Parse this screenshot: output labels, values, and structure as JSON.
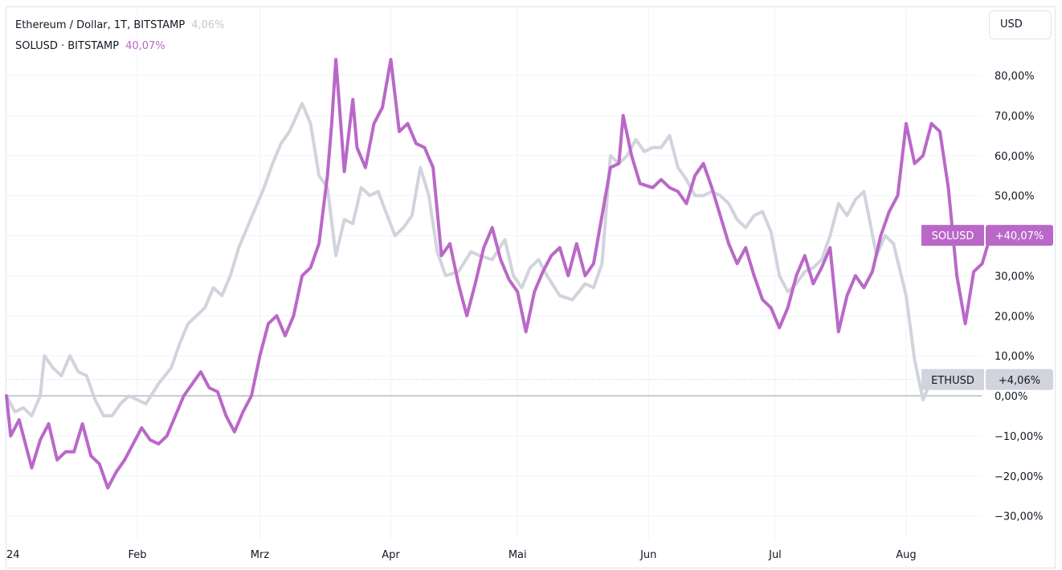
{
  "legend": {
    "eth_title": "Ethereum / Dollar, 1T, BITSTAMP",
    "eth_value": "4,06%",
    "sol_title": "SOLUSD · BITSTAMP",
    "sol_value": "40,07%"
  },
  "currency_button": "USD",
  "colors": {
    "eth": "#d1d4dc",
    "sol": "#ba68c8",
    "grid": "#f0f3fa",
    "zero": "#9598a1"
  },
  "chart_data": {
    "type": "line",
    "x_range": [
      "2024-01-01",
      "2024-08-12"
    ],
    "ylim": [
      -32,
      88
    ],
    "y_ticks": [
      80,
      70,
      60,
      50,
      40,
      30,
      20,
      10,
      0,
      -10,
      -20,
      -30
    ],
    "y_tick_labels": [
      "80,00%",
      "70,00%",
      "60,00%",
      "50,00%",
      "40,00%",
      "30,00%",
      "20,00%",
      "10,00%",
      "0,00%",
      "−10,00%",
      "−20,00%",
      "−30,00%"
    ],
    "x_ticks": [
      {
        "date": "2024-01-01",
        "label": "24"
      },
      {
        "date": "2024-02-01",
        "label": "Feb"
      },
      {
        "date": "2024-03-01",
        "label": "Mrz"
      },
      {
        "date": "2024-04-01",
        "label": "Apr"
      },
      {
        "date": "2024-05-01",
        "label": "Mai"
      },
      {
        "date": "2024-06-01",
        "label": "Jun"
      },
      {
        "date": "2024-07-01",
        "label": "Jul"
      },
      {
        "date": "2024-08-01",
        "label": "Aug"
      }
    ],
    "series": [
      {
        "name": "ETHUSD",
        "tag_value": "+4,06%",
        "points": [
          [
            "2024-01-01",
            0
          ],
          [
            "2024-01-03",
            -4
          ],
          [
            "2024-01-05",
            -3
          ],
          [
            "2024-01-07",
            -5
          ],
          [
            "2024-01-09",
            0
          ],
          [
            "2024-01-10",
            10
          ],
          [
            "2024-01-12",
            7
          ],
          [
            "2024-01-14",
            5
          ],
          [
            "2024-01-16",
            10
          ],
          [
            "2024-01-18",
            6
          ],
          [
            "2024-01-20",
            5
          ],
          [
            "2024-01-22",
            -1
          ],
          [
            "2024-01-24",
            -5
          ],
          [
            "2024-01-26",
            -5
          ],
          [
            "2024-01-28",
            -2
          ],
          [
            "2024-01-30",
            0
          ],
          [
            "2024-02-01",
            -1
          ],
          [
            "2024-02-03",
            -2
          ],
          [
            "2024-02-06",
            3
          ],
          [
            "2024-02-09",
            7
          ],
          [
            "2024-02-11",
            13
          ],
          [
            "2024-02-13",
            18
          ],
          [
            "2024-02-15",
            20
          ],
          [
            "2024-02-17",
            22
          ],
          [
            "2024-02-19",
            27
          ],
          [
            "2024-02-21",
            25
          ],
          [
            "2024-02-23",
            30
          ],
          [
            "2024-02-25",
            37
          ],
          [
            "2024-02-27",
            42
          ],
          [
            "2024-02-29",
            47
          ],
          [
            "2024-03-02",
            52
          ],
          [
            "2024-03-04",
            58
          ],
          [
            "2024-03-06",
            63
          ],
          [
            "2024-03-08",
            66
          ],
          [
            "2024-03-11",
            73
          ],
          [
            "2024-03-13",
            68
          ],
          [
            "2024-03-15",
            55
          ],
          [
            "2024-03-17",
            52
          ],
          [
            "2024-03-19",
            35
          ],
          [
            "2024-03-21",
            44
          ],
          [
            "2024-03-23",
            43
          ],
          [
            "2024-03-25",
            52
          ],
          [
            "2024-03-27",
            50
          ],
          [
            "2024-03-29",
            51
          ],
          [
            "2024-04-02",
            40
          ],
          [
            "2024-04-04",
            42
          ],
          [
            "2024-04-06",
            45
          ],
          [
            "2024-04-08",
            57
          ],
          [
            "2024-04-10",
            50
          ],
          [
            "2024-04-12",
            36
          ],
          [
            "2024-04-14",
            30
          ],
          [
            "2024-04-17",
            31
          ],
          [
            "2024-04-20",
            36
          ],
          [
            "2024-04-22",
            35
          ],
          [
            "2024-04-25",
            34
          ],
          [
            "2024-04-28",
            39
          ],
          [
            "2024-04-30",
            30
          ],
          [
            "2024-05-02",
            27
          ],
          [
            "2024-05-04",
            32
          ],
          [
            "2024-05-06",
            34
          ],
          [
            "2024-05-08",
            30
          ],
          [
            "2024-05-11",
            25
          ],
          [
            "2024-05-14",
            24
          ],
          [
            "2024-05-17",
            28
          ],
          [
            "2024-05-19",
            27
          ],
          [
            "2024-05-21",
            33
          ],
          [
            "2024-05-23",
            60
          ],
          [
            "2024-05-25",
            58
          ],
          [
            "2024-05-27",
            60
          ],
          [
            "2024-05-29",
            64
          ],
          [
            "2024-05-31",
            61
          ],
          [
            "2024-06-02",
            62
          ],
          [
            "2024-06-04",
            62
          ],
          [
            "2024-06-06",
            65
          ],
          [
            "2024-06-08",
            57
          ],
          [
            "2024-06-10",
            54
          ],
          [
            "2024-06-12",
            50
          ],
          [
            "2024-06-14",
            50
          ],
          [
            "2024-06-16",
            51
          ],
          [
            "2024-06-18",
            50
          ],
          [
            "2024-06-20",
            48
          ],
          [
            "2024-06-22",
            44
          ],
          [
            "2024-06-24",
            42
          ],
          [
            "2024-06-26",
            45
          ],
          [
            "2024-06-28",
            46
          ],
          [
            "2024-06-30",
            41
          ],
          [
            "2024-07-02",
            30
          ],
          [
            "2024-07-04",
            26
          ],
          [
            "2024-07-06",
            28
          ],
          [
            "2024-07-08",
            31
          ],
          [
            "2024-07-10",
            32
          ],
          [
            "2024-07-12",
            34
          ],
          [
            "2024-07-14",
            40
          ],
          [
            "2024-07-16",
            48
          ],
          [
            "2024-07-18",
            45
          ],
          [
            "2024-07-20",
            49
          ],
          [
            "2024-07-22",
            51
          ],
          [
            "2024-07-25",
            35
          ],
          [
            "2024-07-27",
            40
          ],
          [
            "2024-07-29",
            38
          ],
          [
            "2024-08-01",
            25
          ],
          [
            "2024-08-03",
            9
          ],
          [
            "2024-08-05",
            -1
          ],
          [
            "2024-08-07",
            4.06
          ]
        ]
      },
      {
        "name": "SOLUSD",
        "tag_value": "+40,07%",
        "points": [
          [
            "2024-01-01",
            0
          ],
          [
            "2024-01-02",
            -10
          ],
          [
            "2024-01-04",
            -6
          ],
          [
            "2024-01-07",
            -18
          ],
          [
            "2024-01-09",
            -11
          ],
          [
            "2024-01-11",
            -7
          ],
          [
            "2024-01-13",
            -16
          ],
          [
            "2024-01-15",
            -14
          ],
          [
            "2024-01-17",
            -14
          ],
          [
            "2024-01-19",
            -7
          ],
          [
            "2024-01-21",
            -15
          ],
          [
            "2024-01-23",
            -17
          ],
          [
            "2024-01-25",
            -23
          ],
          [
            "2024-01-27",
            -19
          ],
          [
            "2024-01-29",
            -16
          ],
          [
            "2024-01-31",
            -12
          ],
          [
            "2024-02-02",
            -8
          ],
          [
            "2024-02-04",
            -11
          ],
          [
            "2024-02-06",
            -12
          ],
          [
            "2024-02-08",
            -10
          ],
          [
            "2024-02-10",
            -5
          ],
          [
            "2024-02-12",
            0
          ],
          [
            "2024-02-14",
            3
          ],
          [
            "2024-02-16",
            6
          ],
          [
            "2024-02-18",
            2
          ],
          [
            "2024-02-20",
            1
          ],
          [
            "2024-02-22",
            -5
          ],
          [
            "2024-02-24",
            -9
          ],
          [
            "2024-02-26",
            -4
          ],
          [
            "2024-02-28",
            0
          ],
          [
            "2024-03-01",
            10
          ],
          [
            "2024-03-03",
            18
          ],
          [
            "2024-03-05",
            20
          ],
          [
            "2024-03-07",
            15
          ],
          [
            "2024-03-09",
            20
          ],
          [
            "2024-03-11",
            30
          ],
          [
            "2024-03-13",
            32
          ],
          [
            "2024-03-15",
            38
          ],
          [
            "2024-03-17",
            55
          ],
          [
            "2024-03-18",
            68
          ],
          [
            "2024-03-19",
            84
          ],
          [
            "2024-03-20",
            70
          ],
          [
            "2024-03-21",
            56
          ],
          [
            "2024-03-23",
            74
          ],
          [
            "2024-03-24",
            62
          ],
          [
            "2024-03-26",
            57
          ],
          [
            "2024-03-28",
            68
          ],
          [
            "2024-03-30",
            72
          ],
          [
            "2024-04-01",
            84
          ],
          [
            "2024-04-03",
            66
          ],
          [
            "2024-04-05",
            68
          ],
          [
            "2024-04-07",
            63
          ],
          [
            "2024-04-09",
            62
          ],
          [
            "2024-04-11",
            57
          ],
          [
            "2024-04-13",
            35
          ],
          [
            "2024-04-15",
            38
          ],
          [
            "2024-04-17",
            28
          ],
          [
            "2024-04-19",
            20
          ],
          [
            "2024-04-21",
            28
          ],
          [
            "2024-04-23",
            37
          ],
          [
            "2024-04-25",
            42
          ],
          [
            "2024-04-27",
            34
          ],
          [
            "2024-04-29",
            29
          ],
          [
            "2024-05-01",
            26
          ],
          [
            "2024-05-03",
            16
          ],
          [
            "2024-05-05",
            26
          ],
          [
            "2024-05-07",
            31
          ],
          [
            "2024-05-09",
            35
          ],
          [
            "2024-05-11",
            37
          ],
          [
            "2024-05-13",
            30
          ],
          [
            "2024-05-15",
            38
          ],
          [
            "2024-05-17",
            30
          ],
          [
            "2024-05-19",
            33
          ],
          [
            "2024-05-21",
            45
          ],
          [
            "2024-05-23",
            57
          ],
          [
            "2024-05-25",
            58
          ],
          [
            "2024-05-26",
            70
          ],
          [
            "2024-05-28",
            60
          ],
          [
            "2024-05-30",
            53
          ],
          [
            "2024-06-02",
            52
          ],
          [
            "2024-06-04",
            54
          ],
          [
            "2024-06-06",
            52
          ],
          [
            "2024-06-08",
            51
          ],
          [
            "2024-06-10",
            48
          ],
          [
            "2024-06-12",
            55
          ],
          [
            "2024-06-14",
            58
          ],
          [
            "2024-06-16",
            52
          ],
          [
            "2024-06-18",
            45
          ],
          [
            "2024-06-20",
            38
          ],
          [
            "2024-06-22",
            33
          ],
          [
            "2024-06-24",
            37
          ],
          [
            "2024-06-26",
            30
          ],
          [
            "2024-06-28",
            24
          ],
          [
            "2024-06-30",
            22
          ],
          [
            "2024-07-02",
            17
          ],
          [
            "2024-07-04",
            22
          ],
          [
            "2024-07-06",
            30
          ],
          [
            "2024-07-08",
            35
          ],
          [
            "2024-07-10",
            28
          ],
          [
            "2024-07-12",
            32
          ],
          [
            "2024-07-14",
            37
          ],
          [
            "2024-07-16",
            16
          ],
          [
            "2024-07-18",
            25
          ],
          [
            "2024-07-20",
            30
          ],
          [
            "2024-07-22",
            27
          ],
          [
            "2024-07-24",
            31
          ],
          [
            "2024-07-26",
            40
          ],
          [
            "2024-07-28",
            46
          ],
          [
            "2024-07-30",
            50
          ],
          [
            "2024-08-01",
            68
          ],
          [
            "2024-08-03",
            58
          ],
          [
            "2024-08-05",
            60
          ],
          [
            "2024-08-07",
            68
          ],
          [
            "2024-08-09",
            66
          ],
          [
            "2024-08-11",
            52
          ],
          [
            "2024-08-13",
            30
          ],
          [
            "2024-08-15",
            18
          ],
          [
            "2024-08-17",
            31
          ],
          [
            "2024-08-19",
            33
          ],
          [
            "2024-08-21",
            40.07
          ]
        ]
      }
    ]
  }
}
